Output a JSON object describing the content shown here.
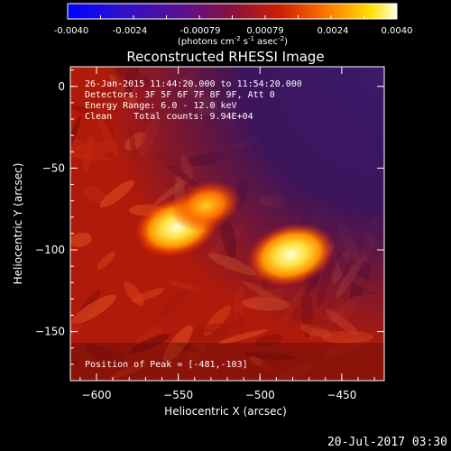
{
  "colorbar": {
    "ticks": [
      "-0.0040",
      "-0.0024",
      "-0.00079",
      "0.00079",
      "0.0024",
      "0.0040"
    ],
    "unit_prefix": "(photons cm",
    "unit_exp1": "-2",
    "unit_mid1": " s",
    "unit_exp2": "-1",
    "unit_mid2": " asec",
    "unit_exp3": "-2",
    "unit_suffix": ")"
  },
  "chart_data": {
    "type": "heatmap",
    "title": "Reconstructed RHESSI Image",
    "xlabel": "Heliocentric X (arcsec)",
    "ylabel": "Heliocentric Y (arcsec)",
    "xlim": [
      -616,
      -424
    ],
    "ylim": [
      -180,
      12
    ],
    "x_ticks": [
      -600,
      -550,
      -500,
      -450
    ],
    "y_ticks": [
      0,
      -50,
      -100,
      -150
    ],
    "clim": [
      -0.004,
      0.004
    ],
    "colormap": "blue-purple-red-orange-yellow-white",
    "sources": [
      {
        "x": -551,
        "y": -86,
        "relative_intensity": 0.9
      },
      {
        "x": -533,
        "y": -73,
        "relative_intensity": 0.55
      },
      {
        "x": -481,
        "y": -103,
        "relative_intensity": 1.0
      }
    ],
    "annotations": [
      "26-Jan-2015 11:44:20.000 to 11:54:20.000",
      "Detectors: 3F 5F 6F 7F 8F 9F, Att 0",
      "Energy Range: 6.0 - 12.0 keV",
      "Clean    Total counts: 9.94E+04",
      "Position of Peak = [-481,-103]"
    ]
  },
  "footer": {
    "timestamp": "20-Jul-2017 03:30"
  },
  "colors": {
    "background": "#000000",
    "text": "#ffffff"
  }
}
